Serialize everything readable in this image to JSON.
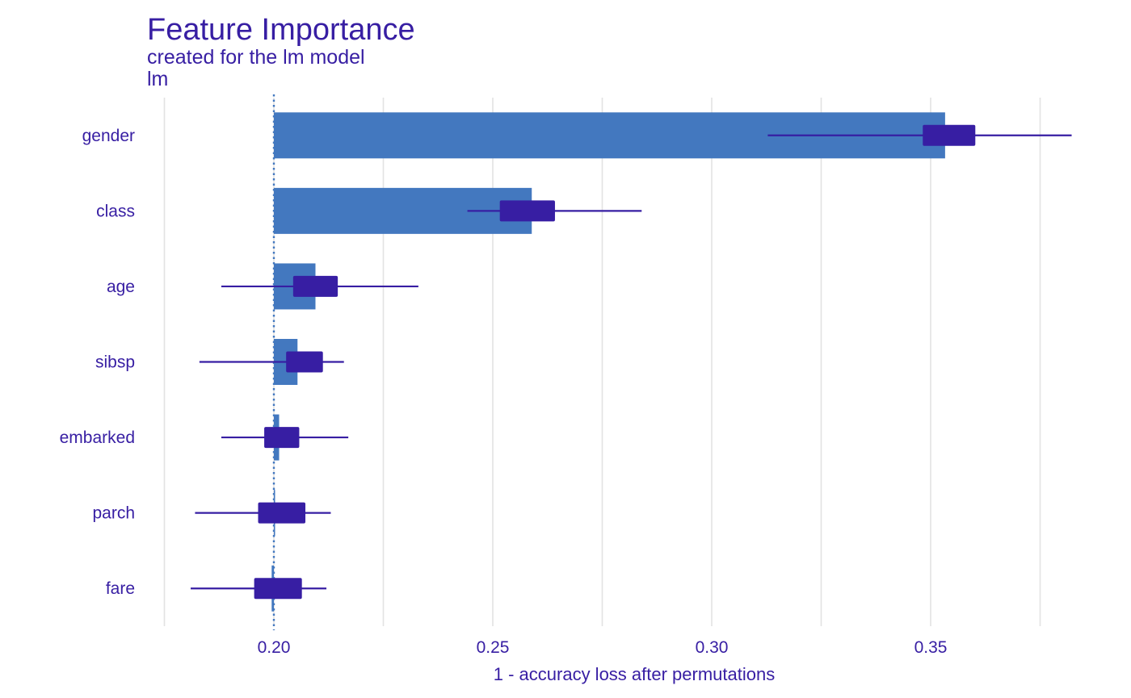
{
  "colors": {
    "text": "#371EA3",
    "bar": "#4378BF",
    "box": "#371EA3",
    "whisker": "#371EA3",
    "grid": "#E3E3E3",
    "baseline": "#4378BF",
    "background": "#FFFFFF"
  },
  "chart_data": {
    "type": "bar",
    "orientation": "horizontal",
    "title": "Feature Importance",
    "subtitle": "created for the lm model",
    "panel_label": "lm",
    "xlabel": "1 - accuracy loss after permutations",
    "ylabel": "",
    "xlim": [
      0.175,
      0.385
    ],
    "xticks": [
      0.2,
      0.25,
      0.3,
      0.35
    ],
    "xtick_labels": [
      "0.20",
      "0.25",
      "0.30",
      "0.35"
    ],
    "baseline": 0.2,
    "grid": true,
    "legend": "none",
    "categories": [
      "gender",
      "class",
      "age",
      "sibsp",
      "embarked",
      "parch",
      "fare"
    ],
    "values": [
      0.3533,
      0.2589,
      0.2095,
      0.2054,
      0.2012,
      0.2002,
      0.1995
    ],
    "boxes": [
      {
        "min": 0.3128,
        "q1": 0.3482,
        "q3": 0.3602,
        "max": 0.3822
      },
      {
        "min": 0.2442,
        "q1": 0.2516,
        "q3": 0.2642,
        "max": 0.284
      },
      {
        "min": 0.188,
        "q1": 0.2044,
        "q3": 0.2146,
        "max": 0.233
      },
      {
        "min": 0.183,
        "q1": 0.2028,
        "q3": 0.2112,
        "max": 0.216
      },
      {
        "min": 0.188,
        "q1": 0.1978,
        "q3": 0.2058,
        "max": 0.217
      },
      {
        "min": 0.182,
        "q1": 0.1964,
        "q3": 0.2072,
        "max": 0.213
      },
      {
        "min": 0.181,
        "q1": 0.1955,
        "q3": 0.2064,
        "max": 0.212
      }
    ]
  }
}
